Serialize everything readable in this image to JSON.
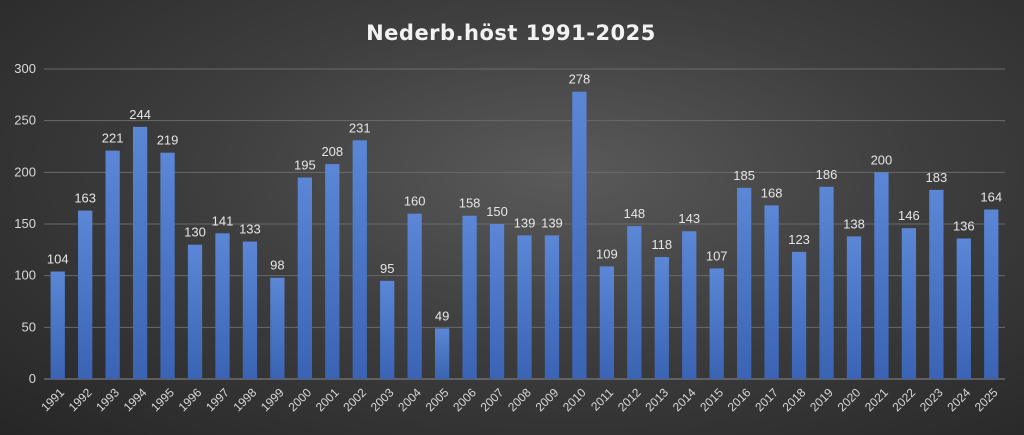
{
  "chart_data": {
    "type": "bar",
    "title": "Nederb.höst 1991-2025",
    "categories": [
      "1991",
      "1992",
      "1993",
      "1994",
      "1995",
      "1996",
      "1997",
      "1998",
      "1999",
      "2000",
      "2001",
      "2002",
      "2003",
      "2004",
      "2005",
      "2006",
      "2007",
      "2008",
      "2009",
      "2010",
      "2011",
      "2012",
      "2013",
      "2014",
      "2015",
      "2016",
      "2017",
      "2018",
      "2019",
      "2020",
      "2021",
      "2022",
      "2023",
      "2024",
      "2025"
    ],
    "values": [
      104,
      163,
      221,
      244,
      219,
      130,
      141,
      133,
      98,
      195,
      208,
      231,
      95,
      160,
      49,
      158,
      150,
      139,
      139,
      278,
      109,
      148,
      118,
      143,
      107,
      185,
      168,
      123,
      186,
      138,
      200,
      146,
      183,
      136,
      164
    ],
    "yticks": [
      "0",
      "50",
      "100",
      "150",
      "200",
      "250",
      "300"
    ],
    "ylim": [
      0,
      300
    ],
    "grid": true,
    "legend": "none",
    "bar_color": "#4472C4",
    "bar_color_light": "#5b87d6"
  }
}
